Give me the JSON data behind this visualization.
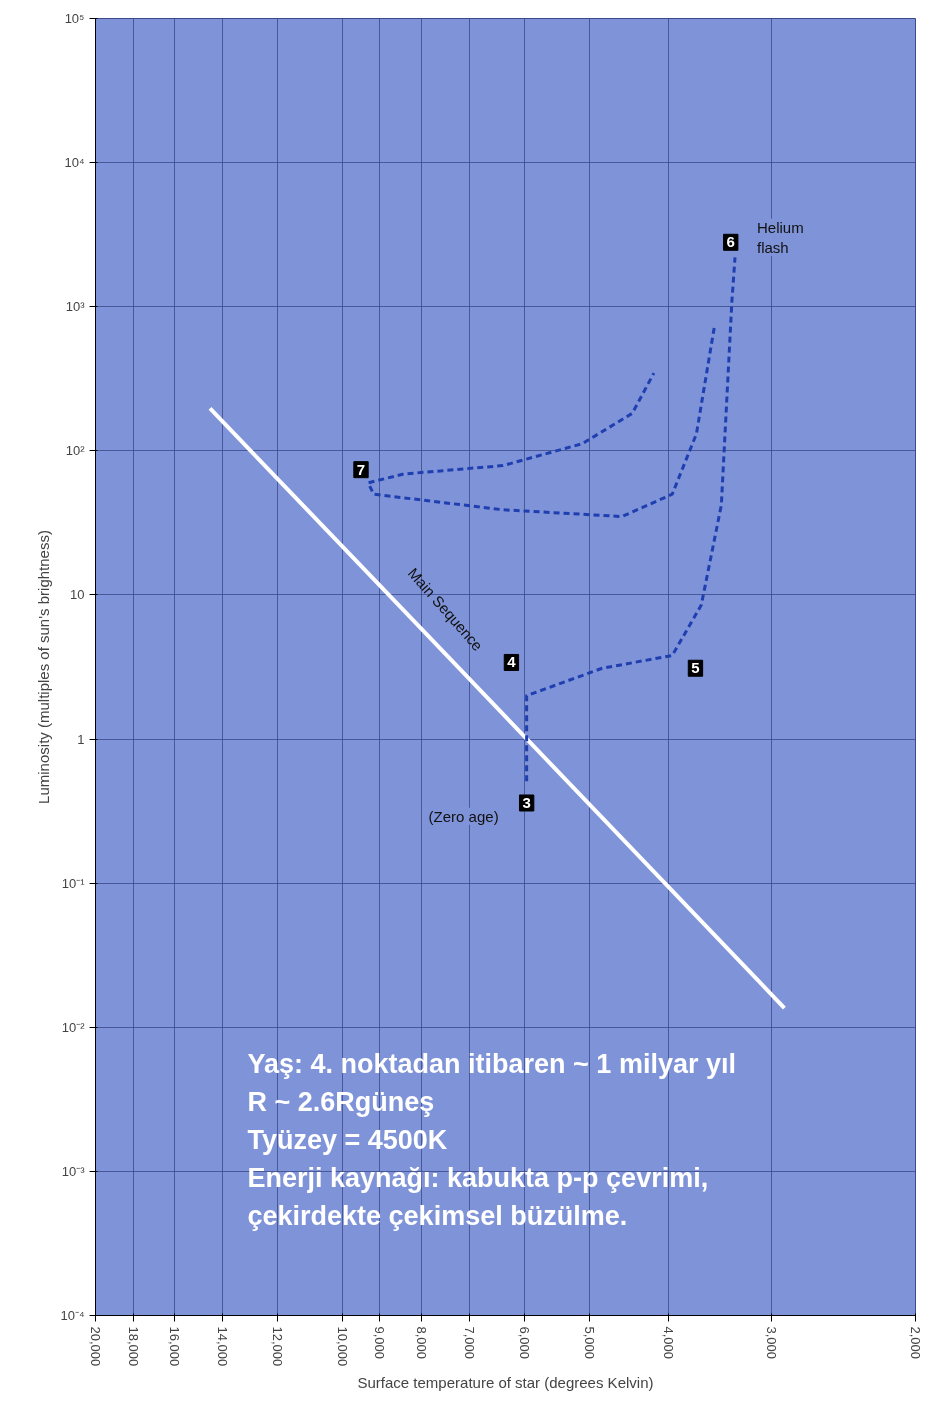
{
  "chart_data": {
    "type": "line",
    "xlabel": "Surface temperature of star (degrees Kelvin)",
    "ylabel": "Luminosity (multiples of sun's brightness)",
    "log": "xy",
    "grid": true,
    "xlim": [
      20000,
      2000
    ],
    "ylim": [
      0.0001,
      100000
    ],
    "xticks": [
      {
        "value": 20000,
        "label": "20,000"
      },
      {
        "value": 18000,
        "label": "18,000"
      },
      {
        "value": 16000,
        "label": "16,000"
      },
      {
        "value": 14000,
        "label": "14,000"
      },
      {
        "value": 12000,
        "label": "12,000"
      },
      {
        "value": 10000,
        "label": "10,000"
      },
      {
        "value": 9000,
        "label": "9,000"
      },
      {
        "value": 8000,
        "label": "8,000"
      },
      {
        "value": 7000,
        "label": "7,000"
      },
      {
        "value": 6000,
        "label": "6,000"
      },
      {
        "value": 5000,
        "label": "5,000"
      },
      {
        "value": 4000,
        "label": "4,000"
      },
      {
        "value": 3000,
        "label": "3,000"
      },
      {
        "value": 2000,
        "label": "2,000"
      }
    ],
    "yticks": [
      {
        "value": 100000,
        "label": "10⁵"
      },
      {
        "value": 10000,
        "label": "10⁴"
      },
      {
        "value": 1000,
        "label": "10³"
      },
      {
        "value": 100,
        "label": "10²"
      },
      10,
      1,
      {
        "value": 0.1,
        "label": "10⁻¹"
      },
      {
        "value": 0.01,
        "label": "10⁻²"
      },
      {
        "value": 0.001,
        "label": "10⁻³"
      },
      {
        "value": 0.0001,
        "label": "10⁻⁴"
      }
    ],
    "series": [
      {
        "color": "#ffffff",
        "line_style": "solid",
        "x": [
          14500,
          7960,
          2890
        ],
        "values": [
          197,
          5.6,
          0.0136
        ]
      },
      {
        "color": "#1f3fb0",
        "line_style": "dashed",
        "x": [
          5960,
          5960,
          4820,
          3960,
          3650,
          3450,
          3350,
          3320
        ],
        "values": [
          0.51,
          2.0,
          3.1,
          3.8,
          8.5,
          42,
          1070,
          2200
        ]
      },
      {
        "color": "#1f3fb0",
        "line_style": "dashed",
        "x": [
          3520,
          3700,
          3960,
          4560,
          6370,
          9160,
          9300,
          8420,
          6370,
          5100,
          4430,
          4170
        ],
        "values": [
          713,
          131,
          50,
          35,
          39,
          50,
          60,
          69,
          79,
          112,
          182,
          346
        ]
      }
    ],
    "annotations": [
      {
        "text": "3",
        "x": 5960,
        "y": 0.36
      },
      {
        "text": "4",
        "x": 6220,
        "y": 3.4
      },
      {
        "text": "5",
        "x": 3710,
        "y": 3.1
      },
      {
        "text": "6",
        "x": 3360,
        "y": 2800
      },
      {
        "text": "7",
        "x": 9490,
        "y": 74
      },
      {
        "text": "(Zero age)",
        "x": 5960,
        "y": 0.51
      },
      {
        "text": "Helium\nflash",
        "x": 3320,
        "y": 2200
      },
      {
        "text": "Main Sequence",
        "x": 7960,
        "y": 5.6
      },
      "Yaş: 4. noktadan itibaren ~ 1 milyar yıl",
      "R ~ 2.6Rgüneş",
      "Tyüzey = 4500K",
      "Enerji kaynağı: kabukta p-p çevrimi,",
      "çekirdekte çekimsel büzülme."
    ]
  }
}
